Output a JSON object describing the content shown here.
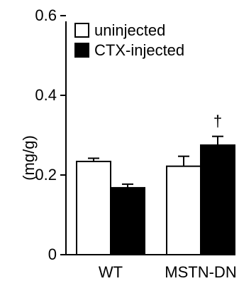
{
  "chart_data": {
    "type": "bar",
    "title": "",
    "xlabel": "",
    "ylabel": "(mg/g)",
    "ylim": [
      0,
      0.6
    ],
    "yticks": [
      0,
      0.2,
      0.4,
      0.6
    ],
    "ytick_labels": [
      "0",
      "0.2",
      "0.4",
      "0.6"
    ],
    "categories": [
      "WT",
      "MSTN-DN"
    ],
    "series": [
      {
        "name": "uninjected",
        "values": [
          0.234,
          0.222
        ],
        "errors": [
          0.008,
          0.025
        ],
        "fill": "#ffffff"
      },
      {
        "name": "CTX-injected",
        "values": [
          0.168,
          0.275
        ],
        "errors": [
          0.009,
          0.022
        ],
        "fill": "#000000"
      }
    ],
    "annotations": [
      {
        "category": "MSTN-DN",
        "series": "CTX-injected",
        "text": "†"
      }
    ],
    "legend": "top-left",
    "grid": false
  }
}
